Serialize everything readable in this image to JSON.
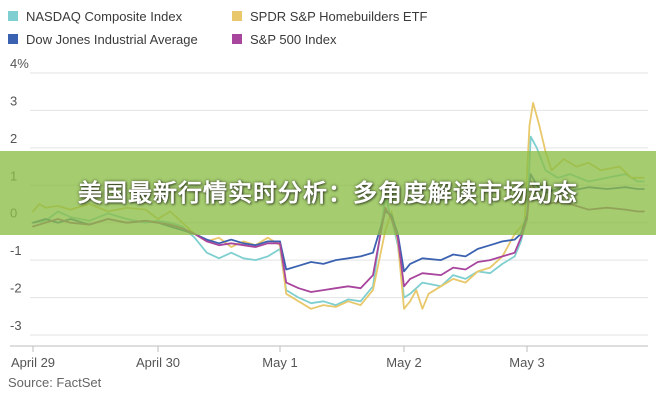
{
  "chart_data": {
    "type": "line",
    "ylim": [
      -3.3,
      4.2
    ],
    "y_ticks": [
      {
        "value": 4,
        "label": "4%"
      },
      {
        "value": 3,
        "label": "3"
      },
      {
        "value": 2,
        "label": "2"
      },
      {
        "value": 1,
        "label": "1"
      },
      {
        "value": 0,
        "label": "0"
      },
      {
        "value": -1,
        "label": "-1"
      },
      {
        "value": -2,
        "label": "-2"
      },
      {
        "value": -3,
        "label": "-3"
      }
    ],
    "x_ticks": [
      {
        "value": 0,
        "label": "April 29"
      },
      {
        "value": 1,
        "label": "April 30"
      },
      {
        "value": 2,
        "label": "May 1"
      },
      {
        "value": 3,
        "label": "May 2"
      },
      {
        "value": 4,
        "label": "May 3"
      }
    ],
    "xlim": [
      0,
      4.95
    ],
    "grid": true,
    "legend_position": "top-left",
    "series": [
      {
        "name": "NASDAQ Composite Index",
        "color": "#7fcfd0",
        "points": [
          [
            0,
            0.0
          ],
          [
            0.1,
            0.05
          ],
          [
            0.2,
            0.3
          ],
          [
            0.3,
            0.15
          ],
          [
            0.45,
            0.05
          ],
          [
            0.6,
            0.25
          ],
          [
            0.75,
            0.1
          ],
          [
            0.9,
            0.0
          ],
          [
            1.0,
            0.05
          ],
          [
            1.1,
            0.0
          ],
          [
            1.2,
            -0.1
          ],
          [
            1.3,
            -0.4
          ],
          [
            1.4,
            -0.8
          ],
          [
            1.5,
            -0.95
          ],
          [
            1.6,
            -0.8
          ],
          [
            1.7,
            -0.95
          ],
          [
            1.8,
            -1.0
          ],
          [
            1.9,
            -0.9
          ],
          [
            2.0,
            -0.7
          ],
          [
            2.05,
            -1.8
          ],
          [
            2.15,
            -2.0
          ],
          [
            2.25,
            -2.15
          ],
          [
            2.35,
            -2.1
          ],
          [
            2.45,
            -2.2
          ],
          [
            2.55,
            -2.05
          ],
          [
            2.65,
            -2.1
          ],
          [
            2.75,
            -1.7
          ],
          [
            2.85,
            0.7
          ],
          [
            2.9,
            0.1
          ],
          [
            2.95,
            -0.6
          ],
          [
            3.0,
            -2.0
          ],
          [
            3.05,
            -1.9
          ],
          [
            3.15,
            -1.6
          ],
          [
            3.3,
            -1.7
          ],
          [
            3.4,
            -1.4
          ],
          [
            3.5,
            -1.5
          ],
          [
            3.6,
            -1.3
          ],
          [
            3.7,
            -1.35
          ],
          [
            3.8,
            -1.1
          ],
          [
            3.9,
            -0.9
          ],
          [
            3.95,
            -0.5
          ],
          [
            4.0,
            0.1
          ],
          [
            4.03,
            2.3
          ],
          [
            4.08,
            2.0
          ],
          [
            4.15,
            1.4
          ],
          [
            4.25,
            1.2
          ],
          [
            4.35,
            1.3
          ],
          [
            4.5,
            1.1
          ],
          [
            4.65,
            1.2
          ],
          [
            4.8,
            1.3
          ],
          [
            4.9,
            1.1
          ],
          [
            4.95,
            1.1
          ]
        ]
      },
      {
        "name": "SPDR S&P Homebuilders ETF",
        "color": "#e8c86a",
        "points": [
          [
            0,
            0.3
          ],
          [
            0.05,
            0.5
          ],
          [
            0.1,
            0.4
          ],
          [
            0.2,
            0.45
          ],
          [
            0.3,
            0.35
          ],
          [
            0.45,
            0.5
          ],
          [
            0.6,
            0.3
          ],
          [
            0.75,
            0.4
          ],
          [
            0.9,
            0.35
          ],
          [
            1.0,
            0.1
          ],
          [
            1.1,
            0.3
          ],
          [
            1.2,
            0.0
          ],
          [
            1.3,
            -0.3
          ],
          [
            1.4,
            -0.5
          ],
          [
            1.5,
            -0.4
          ],
          [
            1.6,
            -0.65
          ],
          [
            1.7,
            -0.5
          ],
          [
            1.8,
            -0.6
          ],
          [
            1.9,
            -0.4
          ],
          [
            2.0,
            -0.6
          ],
          [
            2.05,
            -1.9
          ],
          [
            2.15,
            -2.1
          ],
          [
            2.25,
            -2.3
          ],
          [
            2.35,
            -2.2
          ],
          [
            2.45,
            -2.25
          ],
          [
            2.55,
            -2.1
          ],
          [
            2.65,
            -2.2
          ],
          [
            2.75,
            -1.8
          ],
          [
            2.85,
            -0.2
          ],
          [
            2.9,
            0.3
          ],
          [
            2.95,
            -0.5
          ],
          [
            3.0,
            -2.3
          ],
          [
            3.05,
            -2.1
          ],
          [
            3.1,
            -1.8
          ],
          [
            3.15,
            -2.3
          ],
          [
            3.2,
            -1.9
          ],
          [
            3.3,
            -1.7
          ],
          [
            3.4,
            -1.5
          ],
          [
            3.5,
            -1.6
          ],
          [
            3.6,
            -1.3
          ],
          [
            3.7,
            -1.2
          ],
          [
            3.8,
            -0.9
          ],
          [
            3.9,
            -0.3
          ],
          [
            3.98,
            0.0
          ],
          [
            4.02,
            2.6
          ],
          [
            4.05,
            3.2
          ],
          [
            4.1,
            2.6
          ],
          [
            4.15,
            1.9
          ],
          [
            4.2,
            1.4
          ],
          [
            4.3,
            1.7
          ],
          [
            4.4,
            1.5
          ],
          [
            4.5,
            1.6
          ],
          [
            4.6,
            1.4
          ],
          [
            4.75,
            1.5
          ],
          [
            4.85,
            1.2
          ],
          [
            4.95,
            1.2
          ]
        ]
      },
      {
        "name": "Dow Jones Industrial Average",
        "color": "#3b62b0",
        "points": [
          [
            0,
            0.0
          ],
          [
            0.1,
            0.1
          ],
          [
            0.2,
            0.0
          ],
          [
            0.3,
            0.1
          ],
          [
            0.45,
            -0.05
          ],
          [
            0.6,
            0.1
          ],
          [
            0.75,
            0.0
          ],
          [
            0.9,
            0.05
          ],
          [
            1.0,
            0.0
          ],
          [
            1.1,
            -0.1
          ],
          [
            1.2,
            -0.2
          ],
          [
            1.3,
            -0.3
          ],
          [
            1.4,
            -0.45
          ],
          [
            1.5,
            -0.55
          ],
          [
            1.6,
            -0.45
          ],
          [
            1.7,
            -0.55
          ],
          [
            1.8,
            -0.6
          ],
          [
            1.9,
            -0.5
          ],
          [
            2.0,
            -0.5
          ],
          [
            2.05,
            -1.25
          ],
          [
            2.15,
            -1.15
          ],
          [
            2.25,
            -1.05
          ],
          [
            2.35,
            -1.1
          ],
          [
            2.45,
            -1.0
          ],
          [
            2.55,
            -0.95
          ],
          [
            2.65,
            -0.9
          ],
          [
            2.75,
            -0.8
          ],
          [
            2.85,
            0.3
          ],
          [
            2.9,
            0.2
          ],
          [
            2.95,
            -0.3
          ],
          [
            3.0,
            -1.3
          ],
          [
            3.05,
            -1.1
          ],
          [
            3.15,
            -0.95
          ],
          [
            3.3,
            -1.0
          ],
          [
            3.4,
            -0.85
          ],
          [
            3.5,
            -0.9
          ],
          [
            3.6,
            -0.7
          ],
          [
            3.7,
            -0.6
          ],
          [
            3.8,
            -0.5
          ],
          [
            3.9,
            -0.45
          ],
          [
            3.95,
            -0.3
          ],
          [
            4.0,
            0.2
          ],
          [
            4.03,
            1.3
          ],
          [
            4.08,
            1.0
          ],
          [
            4.15,
            0.8
          ],
          [
            4.25,
            0.9
          ],
          [
            4.35,
            0.85
          ],
          [
            4.5,
            0.95
          ],
          [
            4.65,
            0.9
          ],
          [
            4.8,
            0.95
          ],
          [
            4.9,
            0.9
          ],
          [
            4.95,
            0.9
          ]
        ]
      },
      {
        "name": "S&P 500 Index",
        "color": "#a8459d",
        "points": [
          [
            0,
            -0.1
          ],
          [
            0.1,
            0.0
          ],
          [
            0.2,
            0.1
          ],
          [
            0.3,
            0.0
          ],
          [
            0.45,
            -0.05
          ],
          [
            0.6,
            0.1
          ],
          [
            0.75,
            0.0
          ],
          [
            0.9,
            0.05
          ],
          [
            1.0,
            0.0
          ],
          [
            1.1,
            -0.05
          ],
          [
            1.2,
            -0.15
          ],
          [
            1.3,
            -0.3
          ],
          [
            1.4,
            -0.5
          ],
          [
            1.5,
            -0.6
          ],
          [
            1.6,
            -0.55
          ],
          [
            1.7,
            -0.6
          ],
          [
            1.8,
            -0.65
          ],
          [
            1.9,
            -0.55
          ],
          [
            2.0,
            -0.55
          ],
          [
            2.05,
            -1.6
          ],
          [
            2.15,
            -1.75
          ],
          [
            2.25,
            -1.85
          ],
          [
            2.35,
            -1.8
          ],
          [
            2.45,
            -1.75
          ],
          [
            2.55,
            -1.7
          ],
          [
            2.65,
            -1.75
          ],
          [
            2.75,
            -1.4
          ],
          [
            2.85,
            0.4
          ],
          [
            2.9,
            0.1
          ],
          [
            2.95,
            -0.4
          ],
          [
            3.0,
            -1.7
          ],
          [
            3.05,
            -1.5
          ],
          [
            3.15,
            -1.35
          ],
          [
            3.3,
            -1.4
          ],
          [
            3.4,
            -1.2
          ],
          [
            3.5,
            -1.25
          ],
          [
            3.6,
            -1.05
          ],
          [
            3.7,
            -1.0
          ],
          [
            3.8,
            -0.9
          ],
          [
            3.9,
            -0.8
          ],
          [
            3.95,
            -0.4
          ],
          [
            4.0,
            0.1
          ],
          [
            4.03,
            1.1
          ],
          [
            4.08,
            0.8
          ],
          [
            4.15,
            0.5
          ],
          [
            4.25,
            0.55
          ],
          [
            4.35,
            0.5
          ],
          [
            4.5,
            0.35
          ],
          [
            4.65,
            0.4
          ],
          [
            4.8,
            0.35
          ],
          [
            4.9,
            0.3
          ],
          [
            4.95,
            0.3
          ]
        ]
      }
    ]
  },
  "source": "Source: FactSet",
  "banner": {
    "text": "美国最新行情实时分析：多角度解读市场动态"
  }
}
